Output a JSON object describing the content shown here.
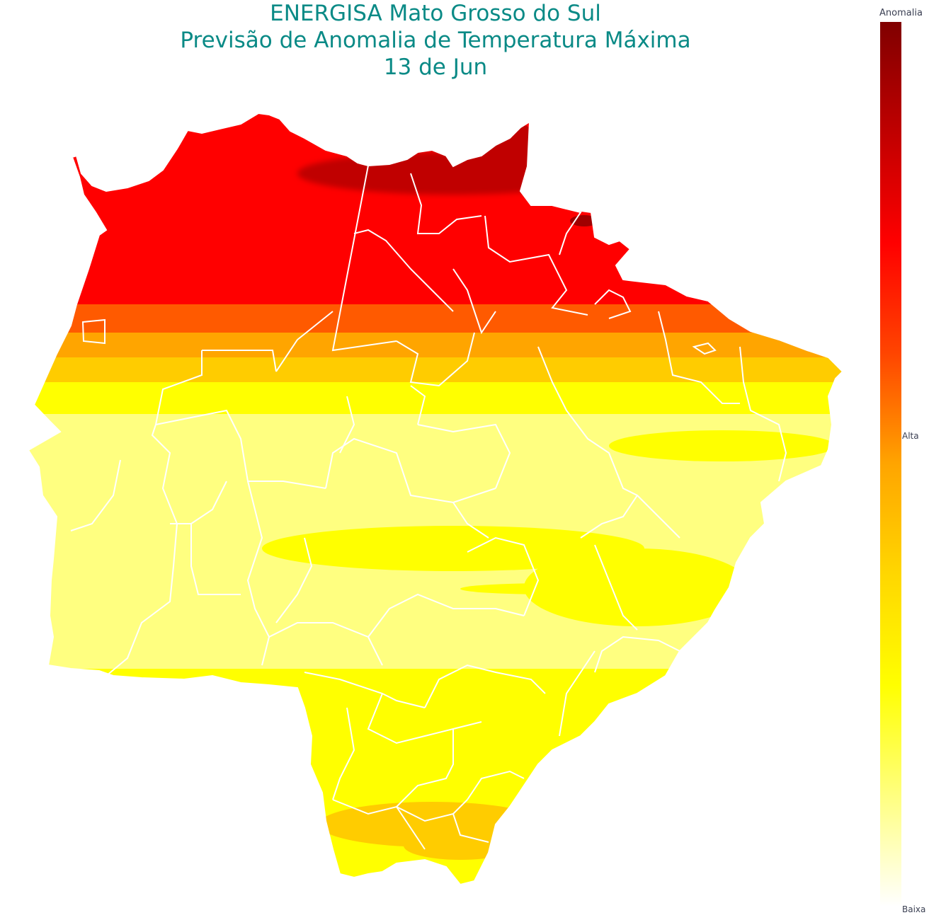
{
  "title": {
    "line1": "ENERGISA Mato Grosso do Sul",
    "line2": "Previsão de Anomalia de Temperatura Máxima",
    "line3": "13 de Jun"
  },
  "legend": {
    "title": "Anomalia",
    "high_label": "Alta",
    "low_label": "Baixa",
    "gradient": [
      "#ffffff",
      "#ffff80",
      "#ffff00",
      "#ffd700",
      "#ffa500",
      "#ff4500",
      "#ff0000",
      "#c00000",
      "#800000"
    ]
  },
  "colors": {
    "outline": "#ffffff",
    "very_high": "#c00000",
    "high": "#ff0000",
    "orange_red": "#ff5a00",
    "orange": "#ffa500",
    "gold": "#ffcc00",
    "yellow": "#ffff00",
    "pale_yellow": "#ffff80"
  }
}
